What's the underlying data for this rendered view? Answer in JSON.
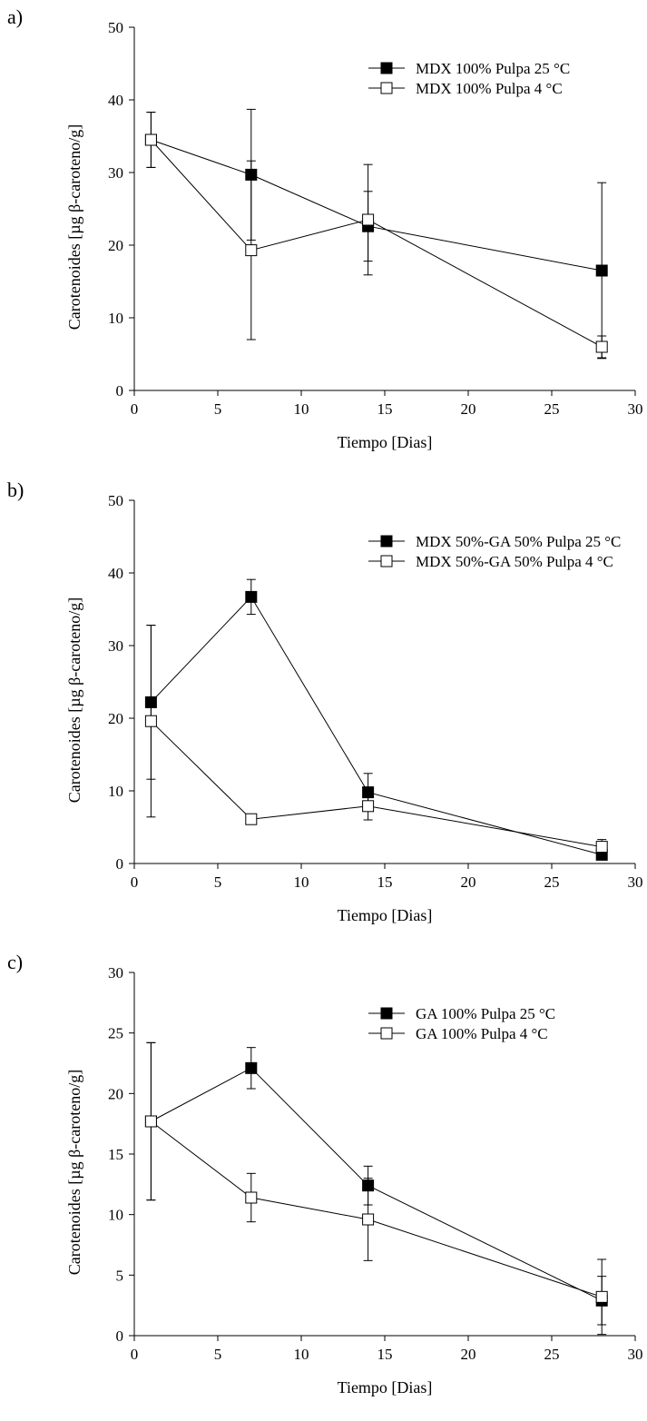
{
  "chart_data": [
    {
      "type": "line",
      "panel_label": "a)",
      "xlabel": "Tiempo [Dias]",
      "ylabel": "Carotenoides  [µg β-caroteno/g]",
      "xlim": [
        0,
        30
      ],
      "ylim": [
        0,
        50
      ],
      "xticks": [
        0,
        5,
        10,
        15,
        20,
        25,
        30
      ],
      "yticks": [
        0,
        10,
        20,
        30,
        40,
        50
      ],
      "grid": false,
      "legend_position": "top-right",
      "series": [
        {
          "name": "MDX 100%  Pulpa 25 °C",
          "marker": "filled-square",
          "color": "#000000",
          "x": [
            1,
            7,
            14,
            28
          ],
          "y": [
            34.5,
            29.7,
            22.6,
            16.5
          ],
          "err": [
            3.8,
            9.0,
            4.8,
            12.1
          ]
        },
        {
          "name": "MDX 100% Pulpa 4 °C",
          "marker": "open-square",
          "color": "#000000",
          "x": [
            1,
            7,
            14,
            28
          ],
          "y": [
            34.5,
            19.3,
            23.5,
            6.0
          ],
          "err": [
            3.8,
            12.3,
            7.6,
            1.5
          ]
        }
      ]
    },
    {
      "type": "line",
      "panel_label": "b)",
      "xlabel": "Tiempo [Dias]",
      "ylabel": "Carotenoides  [µg β-caroteno/g]",
      "xlim": [
        0,
        30
      ],
      "ylim": [
        0,
        50
      ],
      "xticks": [
        0,
        5,
        10,
        15,
        20,
        25,
        30
      ],
      "yticks": [
        0,
        10,
        20,
        30,
        40,
        50
      ],
      "grid": false,
      "legend_position": "top-right",
      "series": [
        {
          "name": "MDX 50%-GA 50% Pulpa 25 °C",
          "marker": "filled-square",
          "color": "#000000",
          "x": [
            1,
            7,
            14,
            28
          ],
          "y": [
            22.2,
            36.7,
            9.8,
            1.2
          ],
          "err": [
            10.6,
            2.4,
            2.6,
            0.5
          ]
        },
        {
          "name": "MDX 50%-GA 50% Pulpa 4 °C",
          "marker": "open-square",
          "color": "#000000",
          "x": [
            1,
            7,
            14,
            28
          ],
          "y": [
            19.6,
            6.1,
            7.9,
            2.3
          ],
          "err": [
            13.2,
            0.0,
            1.9,
            1.0
          ]
        }
      ]
    },
    {
      "type": "line",
      "panel_label": "c)",
      "xlabel": "Tiempo [Dias]",
      "ylabel": "Carotenoides  [µg β-caroteno/g]",
      "xlim": [
        0,
        30
      ],
      "ylim": [
        0,
        30
      ],
      "xticks": [
        0,
        5,
        10,
        15,
        20,
        25,
        30
      ],
      "yticks": [
        0,
        5,
        10,
        15,
        20,
        25,
        30
      ],
      "grid": false,
      "legend_position": "top-right",
      "series": [
        {
          "name": "GA 100%  Pulpa 25 °C",
          "marker": "filled-square",
          "color": "#000000",
          "x": [
            1,
            7,
            14,
            28
          ],
          "y": [
            17.7,
            22.1,
            12.4,
            2.9
          ],
          "err": [
            6.5,
            1.7,
            1.6,
            2.0
          ]
        },
        {
          "name": "GA 100% Pulpa 4 °C",
          "marker": "open-square",
          "color": "#000000",
          "x": [
            1,
            7,
            14,
            28
          ],
          "y": [
            17.7,
            11.4,
            9.6,
            3.2
          ],
          "err": [
            6.5,
            2.0,
            3.4,
            3.1
          ]
        }
      ]
    }
  ]
}
